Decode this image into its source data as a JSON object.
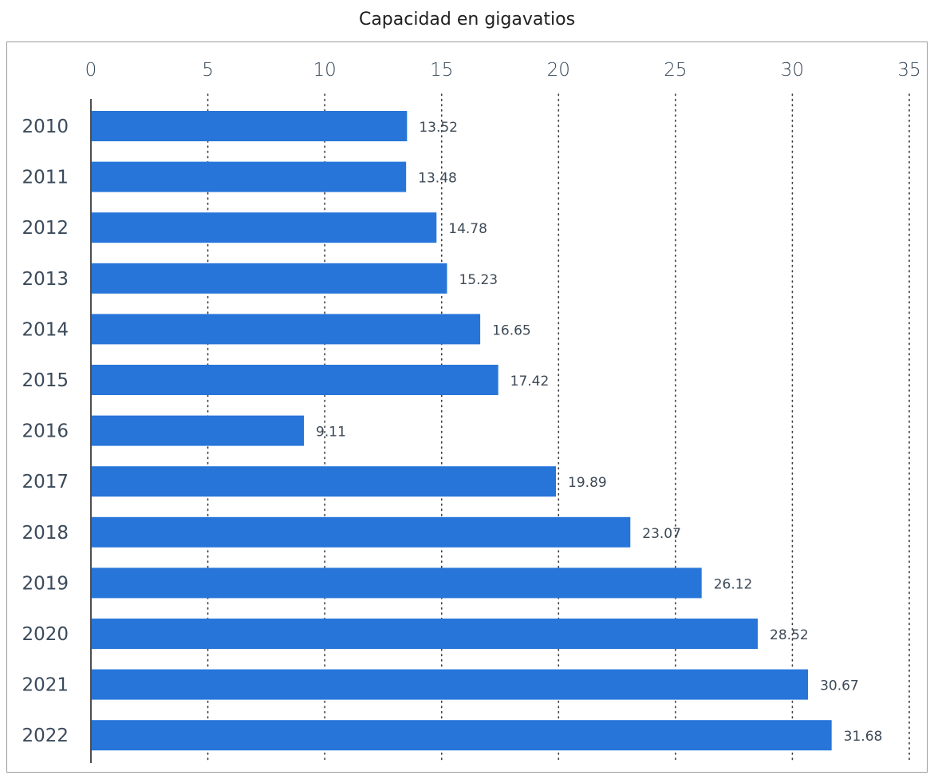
{
  "chart_data": {
    "type": "bar",
    "orientation": "horizontal",
    "title": "",
    "xlabel": "Capacidad en gigavatios",
    "ylabel": "",
    "categories": [
      "2010",
      "2011",
      "2012",
      "2013",
      "2014",
      "2015",
      "2016",
      "2017",
      "2018",
      "2019",
      "2020",
      "2021",
      "2022"
    ],
    "values": [
      13.52,
      13.48,
      14.78,
      15.23,
      16.65,
      17.42,
      9.11,
      19.89,
      23.07,
      26.12,
      28.52,
      30.67,
      31.68
    ],
    "value_labels": [
      "13.52",
      "13.48",
      "14.78",
      "15.23",
      "16.65",
      "17.42",
      "9.11",
      "19.89",
      "23.07",
      "26.12",
      "28.52",
      "30.67",
      "31.68"
    ],
    "xlim": [
      0,
      35
    ],
    "xticks": [
      "0",
      "5",
      "10",
      "15",
      "20",
      "25",
      "30",
      "35"
    ],
    "x_axis_position": "top",
    "grid": "vertical dotted",
    "bar_color": "#2775d9",
    "legend": "none"
  }
}
